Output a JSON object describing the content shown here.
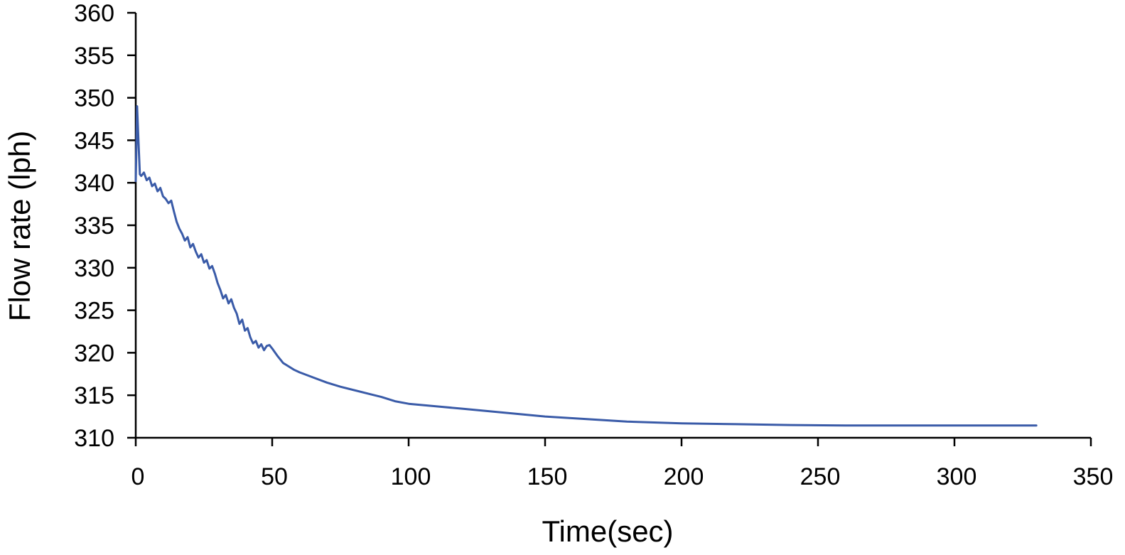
{
  "chart_data": {
    "type": "line",
    "title": "",
    "xlabel": "Time(sec)",
    "ylabel": "Flow rate (lph)",
    "xlim": [
      0,
      350
    ],
    "ylim": [
      310,
      360
    ],
    "x_ticks": [
      "0",
      "50",
      "100",
      "150",
      "200",
      "250",
      "300",
      "350"
    ],
    "y_ticks": [
      "310",
      "315",
      "320",
      "325",
      "330",
      "335",
      "340",
      "345",
      "350",
      "355",
      "360"
    ],
    "grid": false,
    "legend": "none",
    "series": [
      {
        "color": "#3a5ba8",
        "x": [
          0,
          0.5,
          1,
          1.5,
          2,
          3,
          4,
          5,
          6,
          7,
          8,
          9,
          10,
          11,
          12,
          13,
          14,
          15,
          16,
          17,
          18,
          19,
          20,
          21,
          22,
          23,
          24,
          25,
          26,
          27,
          28,
          29,
          30,
          31,
          32,
          33,
          34,
          35,
          36,
          37,
          38,
          39,
          40,
          41,
          42,
          43,
          44,
          45,
          46,
          47,
          48,
          49,
          50,
          52,
          54,
          56,
          58,
          60,
          65,
          70,
          75,
          80,
          85,
          90,
          95,
          100,
          110,
          120,
          130,
          140,
          150,
          160,
          170,
          180,
          200,
          220,
          240,
          260,
          280,
          300,
          320,
          330
        ],
        "y": [
          340.2,
          349.0,
          345.0,
          341.0,
          340.8,
          341.2,
          340.3,
          340.6,
          339.6,
          339.9,
          339.0,
          339.4,
          338.4,
          338.1,
          337.6,
          337.9,
          336.6,
          335.4,
          334.6,
          334.0,
          333.2,
          333.6,
          332.4,
          332.8,
          331.9,
          331.2,
          331.6,
          330.6,
          330.9,
          329.9,
          330.2,
          329.3,
          328.2,
          327.4,
          326.4,
          326.8,
          325.8,
          326.3,
          325.3,
          324.6,
          323.4,
          323.9,
          322.6,
          322.9,
          321.8,
          321.1,
          321.4,
          320.6,
          321.0,
          320.3,
          320.8,
          320.9,
          320.5,
          319.6,
          318.8,
          318.4,
          318.0,
          317.7,
          317.1,
          316.5,
          316.0,
          315.6,
          315.2,
          314.8,
          314.3,
          314.0,
          313.7,
          313.4,
          313.1,
          312.8,
          312.5,
          312.3,
          312.1,
          311.9,
          311.7,
          311.6,
          311.5,
          311.45,
          311.45,
          311.45,
          311.45,
          311.45
        ]
      }
    ]
  }
}
